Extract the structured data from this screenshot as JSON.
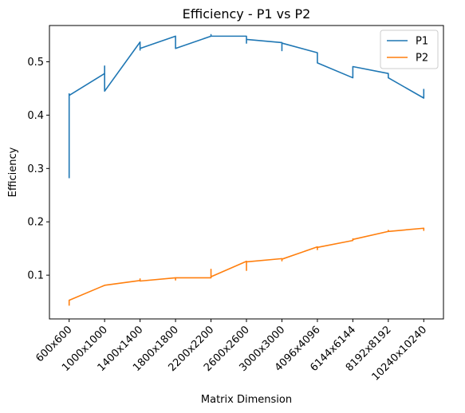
{
  "chart_data": {
    "type": "line",
    "title": "Efficiency - P1 vs P2",
    "xlabel": "Matrix Dimension",
    "ylabel": "Efficiency",
    "categories": [
      "600x600",
      "1000x1000",
      "1400x1400",
      "1800x1800",
      "2200x2200",
      "2600x2600",
      "3000x3000",
      "4096x4096",
      "6144x6144",
      "8192x8192",
      "10240x10240"
    ],
    "yticks": [
      "0.1",
      "0.2",
      "0.3",
      "0.4",
      "0.5"
    ],
    "ylim": [
      0.018,
      0.568
    ],
    "grid": false,
    "legend_position": "top-right",
    "series": [
      {
        "name": "P1",
        "color": "#1f77b4",
        "points": [
          [
            0,
            0.283
          ],
          [
            0,
            0.44
          ],
          [
            0,
            0.437
          ],
          [
            1,
            0.478
          ],
          [
            1,
            0.492
          ],
          [
            1,
            0.445
          ],
          [
            2,
            0.537
          ],
          [
            2,
            0.522
          ],
          [
            2,
            0.525
          ],
          [
            3,
            0.548
          ],
          [
            3,
            0.525
          ],
          [
            4,
            0.548
          ],
          [
            4,
            0.551
          ],
          [
            4,
            0.548
          ],
          [
            5,
            0.548
          ],
          [
            5,
            0.535
          ],
          [
            5,
            0.542
          ],
          [
            6,
            0.536
          ],
          [
            6,
            0.521
          ],
          [
            6,
            0.535
          ],
          [
            7,
            0.517
          ],
          [
            7,
            0.498
          ],
          [
            8,
            0.47
          ],
          [
            8,
            0.491
          ],
          [
            9,
            0.478
          ],
          [
            9,
            0.47
          ],
          [
            10,
            0.432
          ],
          [
            10,
            0.448
          ]
        ]
      },
      {
        "name": "P2",
        "color": "#ff7f0e",
        "points": [
          [
            0,
            0.044
          ],
          [
            0,
            0.053
          ],
          [
            1,
            0.081
          ],
          [
            2,
            0.09
          ],
          [
            2,
            0.093
          ],
          [
            2,
            0.089
          ],
          [
            3,
            0.095
          ],
          [
            3,
            0.091
          ],
          [
            3,
            0.095
          ],
          [
            4,
            0.095
          ],
          [
            4,
            0.111
          ],
          [
            4,
            0.097
          ],
          [
            5,
            0.126
          ],
          [
            5,
            0.109
          ],
          [
            5,
            0.125
          ],
          [
            6,
            0.131
          ],
          [
            6,
            0.127
          ],
          [
            6,
            0.13
          ],
          [
            7,
            0.153
          ],
          [
            7,
            0.148
          ],
          [
            7,
            0.152
          ],
          [
            8,
            0.165
          ],
          [
            8,
            0.168
          ],
          [
            8,
            0.167
          ],
          [
            9,
            0.182
          ],
          [
            9,
            0.184
          ],
          [
            9,
            0.182
          ],
          [
            10,
            0.188
          ],
          [
            10,
            0.184
          ],
          [
            10,
            0.187
          ]
        ]
      }
    ]
  }
}
